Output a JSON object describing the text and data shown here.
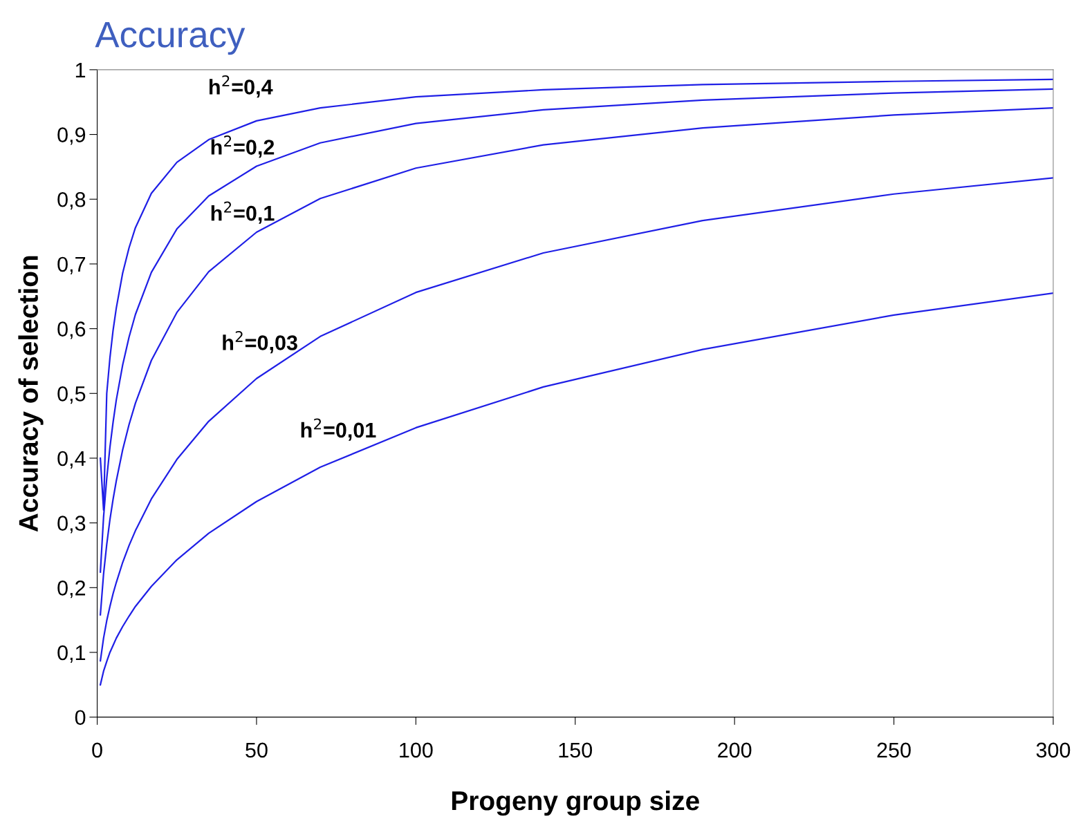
{
  "chart_data": {
    "type": "line",
    "title": "Accuracy",
    "xlabel": "Progeny group size",
    "ylabel": "Accuracy of selection",
    "x": [
      1,
      2,
      3,
      4,
      5,
      6,
      8,
      10,
      12,
      17,
      25,
      35,
      50,
      70,
      100,
      140,
      190,
      250,
      300
    ],
    "series": [
      {
        "color": "#1f1fe6",
        "values": [
          0.4,
          0.32,
          0.5,
          0.555,
          0.598,
          0.632,
          0.686,
          0.725,
          0.756,
          0.809,
          0.857,
          0.892,
          0.921,
          0.941,
          0.958,
          0.969,
          0.977,
          0.982,
          0.985
        ]
      },
      {
        "color": "#1f1fe6",
        "values": [
          0.224,
          0.309,
          0.369,
          0.417,
          0.456,
          0.49,
          0.544,
          0.587,
          0.622,
          0.687,
          0.754,
          0.805,
          0.851,
          0.887,
          0.917,
          0.938,
          0.953,
          0.964,
          0.97
        ]
      },
      {
        "color": "#1f1fe6",
        "values": [
          0.158,
          0.221,
          0.267,
          0.305,
          0.337,
          0.365,
          0.413,
          0.452,
          0.485,
          0.551,
          0.625,
          0.688,
          0.749,
          0.801,
          0.848,
          0.884,
          0.91,
          0.93,
          0.941
        ]
      },
      {
        "color": "#1f1fe6",
        "values": [
          0.087,
          0.122,
          0.149,
          0.171,
          0.191,
          0.208,
          0.239,
          0.265,
          0.288,
          0.337,
          0.398,
          0.457,
          0.523,
          0.588,
          0.656,
          0.717,
          0.767,
          0.808,
          0.833
        ]
      },
      {
        "color": "#1f1fe6",
        "values": [
          0.05,
          0.071,
          0.086,
          0.1,
          0.111,
          0.122,
          0.14,
          0.156,
          0.171,
          0.202,
          0.243,
          0.284,
          0.333,
          0.386,
          0.447,
          0.51,
          0.568,
          0.621,
          0.655
        ]
      }
    ],
    "annotations": [
      "h$^{2}$=0,4",
      "h$^{2}$=0,2",
      "h$^{2}$=0,1",
      "h$^{2}$=0,03",
      "h$^{2}$=0,01"
    ],
    "xlim": [
      0,
      300
    ],
    "ylim": [
      0,
      1
    ],
    "xticks": [
      0,
      50,
      100,
      150,
      200,
      250,
      300
    ],
    "yticks": [
      0,
      {
        "value": 0.1,
        "label": "0,1"
      },
      {
        "value": 0.2,
        "label": "0,2"
      },
      {
        "value": 0.3,
        "label": "0,3"
      },
      {
        "value": 0.4,
        "label": "0,4"
      },
      {
        "value": 0.5,
        "label": "0,5"
      },
      {
        "value": 0.6,
        "label": "0,6"
      },
      {
        "value": 0.7,
        "label": "0,7"
      },
      {
        "value": 0.8,
        "label": "0,8"
      },
      {
        "value": 0.9,
        "label": "0,9"
      },
      1
    ],
    "grid": false,
    "legend": false,
    "marker": "none",
    "line_style": "solid"
  }
}
